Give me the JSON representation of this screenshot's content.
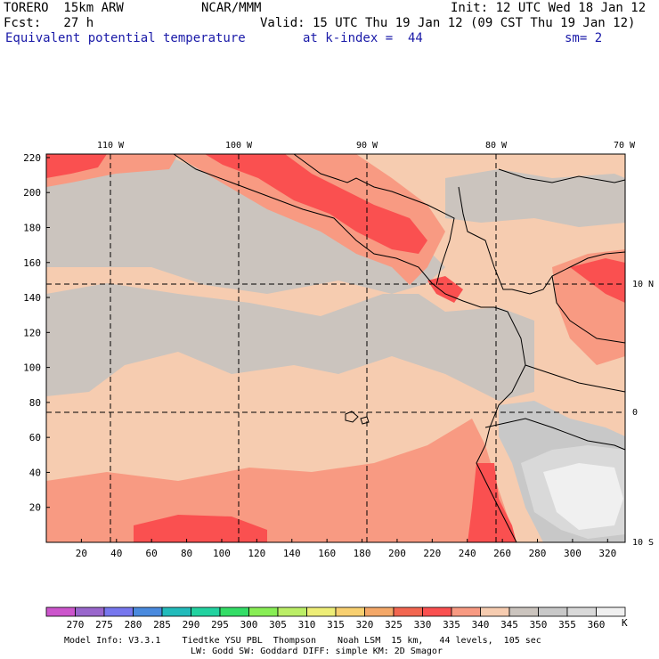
{
  "header": {
    "model": "TORERO  15km ARW",
    "center": "NCAR/MMM",
    "init": "Init: 12 UTC Wed 18 Jan 12",
    "fcst": "Fcst:   27 h",
    "valid": "Valid: 15 UTC Thu 19 Jan 12 (09 CST Thu 19 Jan 12)",
    "field": "Equivalent potential temperature",
    "level": "at k-index =  44",
    "smooth": "sm= 2"
  },
  "map": {
    "lon_labels": [
      "110 W",
      "100 W",
      "90 W",
      "80 W",
      "70 W"
    ],
    "lat_labels": [
      "10 N",
      "0",
      "10 S"
    ],
    "x_ticks": [
      "20",
      "40",
      "60",
      "80",
      "100",
      "120",
      "140",
      "160",
      "180",
      "200",
      "220",
      "240",
      "260",
      "280",
      "300",
      "320"
    ],
    "y_ticks": [
      "20",
      "40",
      "60",
      "80",
      "100",
      "120",
      "140",
      "160",
      "180",
      "200",
      "220"
    ],
    "colors": {
      "c340": "#f6ccb0",
      "c345": "#cbc4be",
      "c350": "#c8c8c8",
      "c355": "#d9d9d9",
      "c360": "#f0f0f0",
      "c330": "#fa5050",
      "c335": "#f89a82"
    }
  },
  "colorbar": {
    "labels": [
      "270",
      "275",
      "280",
      "285",
      "290",
      "295",
      "300",
      "305",
      "310",
      "315",
      "320",
      "325",
      "330",
      "335",
      "340",
      "345",
      "350",
      "355",
      "360"
    ],
    "unit": "K",
    "colors": [
      "#cc55cc",
      "#9966cc",
      "#7777ee",
      "#4a8ade",
      "#22bbbb",
      "#22d2a0",
      "#33dd66",
      "#88ee55",
      "#bbee66",
      "#eeee77",
      "#f8d070",
      "#f4a868",
      "#f26650",
      "#fa5050",
      "#f89a82",
      "#f6ccb0",
      "#cbc4be",
      "#c8c8c8",
      "#d9d9d9",
      "#f0f0f0"
    ]
  },
  "footer": {
    "line1": "Model Info: V3.3.1    Tiedtke YSU PBL  Thompson    Noah LSM  15 km,   44 levels,  105 sec",
    "line2": "LW: Godd SW: Goddard DIFF: simple KM: 2D Smagor"
  }
}
